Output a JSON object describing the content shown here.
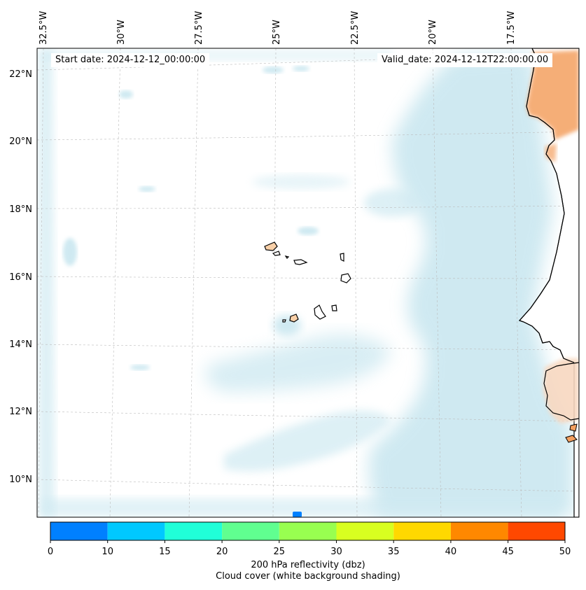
{
  "header": {
    "start_date": "Start date: 2024-12-12_00:00:00",
    "valid_date": "Valid_date: 2024-12-12T22:00:00.00"
  },
  "axes": {
    "lon_labels": [
      "32.5°W",
      "30°W",
      "27.5°W",
      "25°W",
      "22.5°W",
      "20°W",
      "17.5°W"
    ],
    "lat_labels": [
      "22°N",
      "20°N",
      "18°N",
      "16°N",
      "14°N",
      "12°N",
      "10°N"
    ]
  },
  "colorbar": {
    "ticks": [
      "0",
      "10",
      "15",
      "20",
      "25",
      "30",
      "35",
      "40",
      "45",
      "50"
    ],
    "colors": [
      "#0080ff",
      "#00c8ff",
      "#20ffd8",
      "#60ff90",
      "#98ff50",
      "#d8ff20",
      "#ffd800",
      "#ff8800",
      "#ff4800"
    ],
    "label": "200 hPa reflectivity (dbz)",
    "sublabel": "Cloud cover (white background shading)"
  },
  "colors": {
    "cloud": "#a8d8e6",
    "land_hot": "#f4a060",
    "land_mild": "#f8d8c0",
    "coast": "#000000",
    "grid": "#bbbbbb"
  }
}
